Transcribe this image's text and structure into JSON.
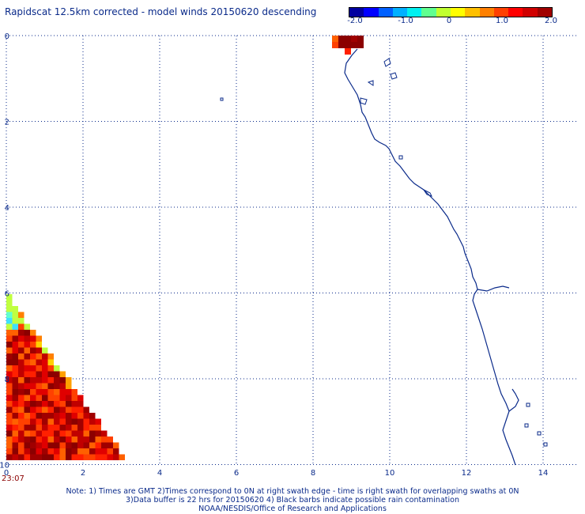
{
  "title": "Rapidscat 12.5km corrected - model winds 20150620 descending",
  "colorbar": {
    "labels": [
      "-2.0",
      "-1.0",
      "0",
      "1.0",
      "2.0"
    ],
    "colors": [
      "#0000a0",
      "#0000ff",
      "#0060ff",
      "#00b0ff",
      "#00f0f0",
      "#60ff90",
      "#c0ff30",
      "#ffff00",
      "#ffc000",
      "#ff8000",
      "#ff4000",
      "#ff0000",
      "#d00000",
      "#a00000"
    ]
  },
  "axes": {
    "x_ticks": [
      "0",
      "2",
      "4",
      "6",
      "8",
      "10",
      "12",
      "14"
    ],
    "y_ticks": [
      "0",
      "2",
      "4",
      "6",
      "8",
      "10"
    ]
  },
  "time_label": "23:07",
  "footer": {
    "line1": "Note: 1) Times are GMT 2)Times correspond to 0N at right swath edge - time is right swath for overlapping swaths at 0N",
    "line2": "3)Data buffer is 22 hrs for 20150620 4) Black barbs indicate possible rain contamination",
    "line3": "NOAA/NESDIS/Office of Research and Applications"
  }
}
